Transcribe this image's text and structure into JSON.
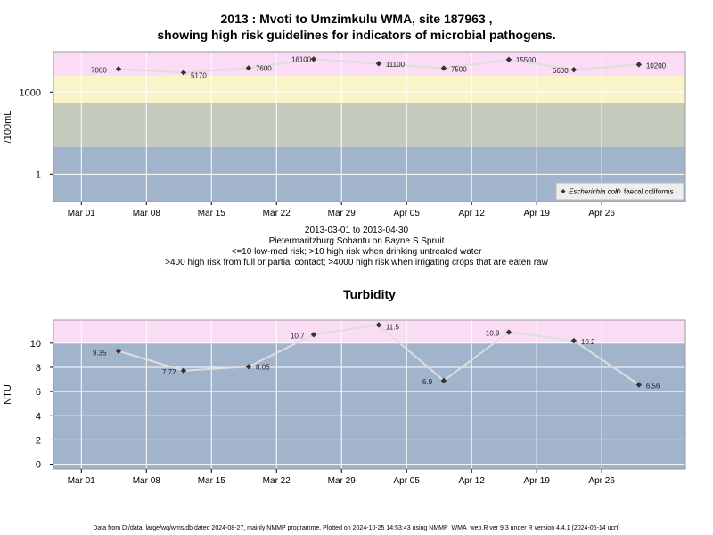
{
  "header": {
    "title_line1": "2013 : Mvoti to Umzimkulu WMA, site 187963 ,",
    "title_line2": "showing high risk guidelines for indicators of microbial pathogens."
  },
  "caption": {
    "date_range": "2013-03-01 to 2013-04-30",
    "site_name": "Pietermaritzburg Sobantu on Bayne S Spruit",
    "guideline1": "<=10 low-med risk; >10 high risk when drinking untreated water",
    "guideline2": ">400 high risk from full or partial contact; >4000 high risk when irrigating crops that are eaten raw"
  },
  "footer": {
    "text": "Data from D:/data_large/wq/wms.db dated 2024-08-27, mainly NMMP programme. Plotted on 2024-10-25 14:53:43 using NMMP_WMA_web.R ver 9.3 under R version 4.4.1 (2024-06-14 ucrt)"
  },
  "colors": {
    "band_pink": "#fadcf5",
    "band_yellow": "#faf5c8",
    "band_grey": "#c5cbbc",
    "band_blue": "#a2b4cc",
    "line": "#dddddd",
    "point": "#333333",
    "grid": "#ffffff"
  },
  "chart_data": [
    {
      "type": "line",
      "title": "",
      "xlabel": "",
      "ylabel": "/100mL",
      "y_scale": "log",
      "ylim": [
        0.1,
        30000
      ],
      "xlim": [
        "2013-02-26",
        "2013-05-05"
      ],
      "grid": true,
      "x_ticks": [
        {
          "date": "2013-03-01",
          "label": "Mar 01"
        },
        {
          "date": "2013-03-08",
          "label": "Mar 08"
        },
        {
          "date": "2013-03-15",
          "label": "Mar 15"
        },
        {
          "date": "2013-03-22",
          "label": "Mar 22"
        },
        {
          "date": "2013-03-29",
          "label": "Mar 29"
        },
        {
          "date": "2013-04-05",
          "label": "Apr 05"
        },
        {
          "date": "2013-04-12",
          "label": "Apr 12"
        },
        {
          "date": "2013-04-19",
          "label": "Apr 19"
        },
        {
          "date": "2013-04-26",
          "label": "Apr 26"
        }
      ],
      "y_ticks": [
        {
          "value": 1,
          "label": "1"
        },
        {
          "value": 1000,
          "label": "1000"
        }
      ],
      "bands": [
        {
          "from": 0.1,
          "to": 10,
          "color": "band_blue"
        },
        {
          "from": 10,
          "to": 400,
          "color": "band_grey"
        },
        {
          "from": 400,
          "to": 4000,
          "color": "band_yellow"
        },
        {
          "from": 4000,
          "to": 30000,
          "color": "band_pink"
        }
      ],
      "legend_position": "bottom-right",
      "series": [
        {
          "name": "Escherichia coli",
          "marker": "diamond",
          "dates": [
            "2013-03-05",
            "2013-03-12",
            "2013-03-19",
            "2013-03-26",
            "2013-04-02",
            "2013-04-09",
            "2013-04-16",
            "2013-04-23",
            "2013-04-30"
          ],
          "values": [
            7000,
            5170,
            7600,
            16100,
            11100,
            7500,
            15500,
            6600,
            10200
          ],
          "labels": [
            "7000",
            "5170",
            "7600",
            "16100",
            "11100",
            "7500",
            "15500",
            "6600",
            "10200"
          ]
        },
        {
          "name": "faecal coliforms",
          "marker": "circle-open",
          "dates": [],
          "values": [],
          "labels": []
        }
      ]
    },
    {
      "type": "line",
      "title": "Turbidity",
      "xlabel": "",
      "ylabel": "NTU",
      "ylim": [
        -0.4,
        11.9
      ],
      "xlim": [
        "2013-02-26",
        "2013-05-05"
      ],
      "grid": true,
      "x_ticks": [
        {
          "date": "2013-03-01",
          "label": "Mar 01"
        },
        {
          "date": "2013-03-08",
          "label": "Mar 08"
        },
        {
          "date": "2013-03-15",
          "label": "Mar 15"
        },
        {
          "date": "2013-03-22",
          "label": "Mar 22"
        },
        {
          "date": "2013-03-29",
          "label": "Mar 29"
        },
        {
          "date": "2013-04-05",
          "label": "Apr 05"
        },
        {
          "date": "2013-04-12",
          "label": "Apr 12"
        },
        {
          "date": "2013-04-19",
          "label": "Apr 19"
        },
        {
          "date": "2013-04-26",
          "label": "Apr 26"
        }
      ],
      "y_ticks": [
        {
          "value": 0,
          "label": "0"
        },
        {
          "value": 2,
          "label": "2"
        },
        {
          "value": 4,
          "label": "4"
        },
        {
          "value": 6,
          "label": "6"
        },
        {
          "value": 8,
          "label": "8"
        },
        {
          "value": 10,
          "label": "10"
        }
      ],
      "bands": [
        {
          "from": -0.4,
          "to": 10,
          "color": "band_blue"
        },
        {
          "from": 10,
          "to": 11.9,
          "color": "band_pink"
        }
      ],
      "series": [
        {
          "marker": "diamond",
          "dates": [
            "2013-03-05",
            "2013-03-12",
            "2013-03-19",
            "2013-03-26",
            "2013-04-02",
            "2013-04-09",
            "2013-04-16",
            "2013-04-23",
            "2013-04-30"
          ],
          "values": [
            9.35,
            7.72,
            8.05,
            10.7,
            11.5,
            6.9,
            10.9,
            10.2,
            6.56
          ],
          "labels": [
            "9.35",
            "7.72",
            "8.05",
            "10.7",
            "11.5",
            "6.9",
            "10.9",
            "10.2",
            "6.56"
          ]
        }
      ]
    }
  ]
}
